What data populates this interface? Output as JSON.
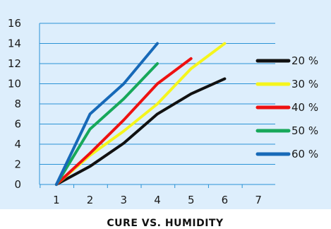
{
  "chart_data": {
    "type": "line",
    "title": "CURE VS. HUMIDITY",
    "xlabel": "",
    "ylabel": "",
    "x_ticks": [
      1,
      2,
      3,
      4,
      5,
      6,
      7
    ],
    "y_ticks": [
      0,
      2,
      4,
      6,
      8,
      10,
      12,
      14,
      16
    ],
    "xlim": [
      0.5,
      7.5
    ],
    "ylim": [
      0,
      16
    ],
    "grid": "horizontal",
    "legend_position": "right",
    "background_color": "#ddeefc",
    "series": [
      {
        "name": "20 %",
        "color": "#111111",
        "x": [
          1,
          2,
          3,
          4,
          5,
          6
        ],
        "y": [
          0,
          1.8,
          4.1,
          7.0,
          9.0,
          10.5
        ]
      },
      {
        "name": "30 %",
        "color": "#f5f51c",
        "x": [
          1,
          2,
          3,
          4,
          5,
          6
        ],
        "y": [
          0,
          2.9,
          5.3,
          8.0,
          11.5,
          14.0
        ]
      },
      {
        "name": "40 %",
        "color": "#ee1111",
        "x": [
          1,
          2,
          3,
          4,
          5
        ],
        "y": [
          0,
          3.1,
          6.4,
          10.0,
          12.5
        ]
      },
      {
        "name": "50 %",
        "color": "#17a85a",
        "x": [
          1,
          2,
          3,
          4
        ],
        "y": [
          0,
          5.5,
          8.5,
          12.0
        ]
      },
      {
        "name": "60 %",
        "color": "#1769b8",
        "x": [
          1,
          2,
          3,
          4
        ],
        "y": [
          0,
          7.0,
          10.0,
          14.0
        ]
      }
    ]
  }
}
